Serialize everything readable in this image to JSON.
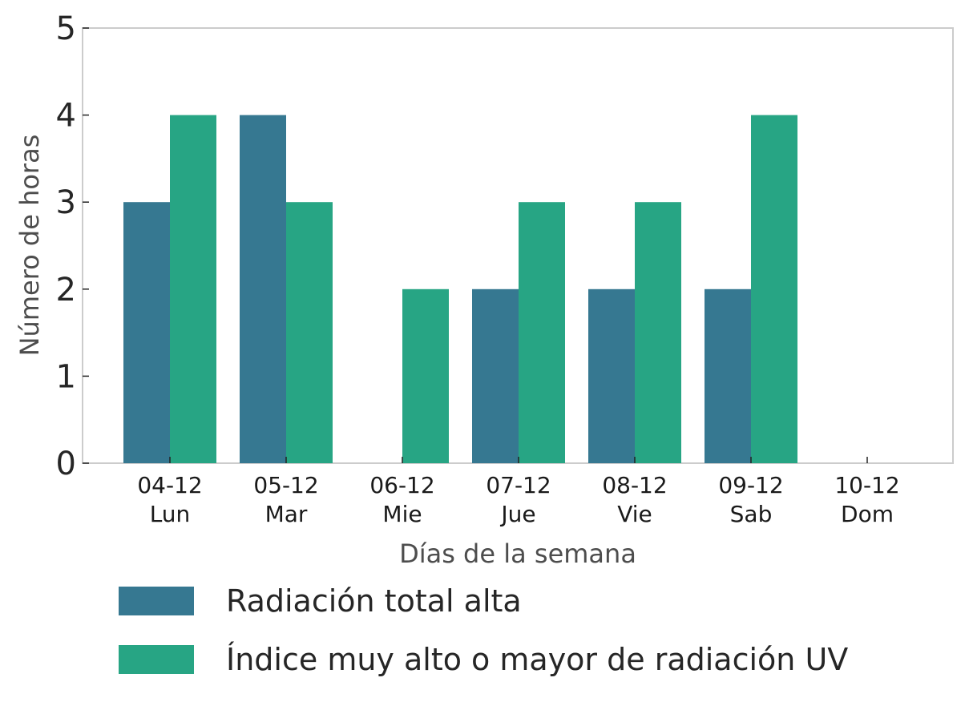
{
  "chart_data": {
    "type": "bar",
    "xlabel": "Días de la semana",
    "ylabel": "Número de horas",
    "ylim": [
      0,
      5
    ],
    "yticks": [
      0,
      1,
      2,
      3,
      4,
      5
    ],
    "categories": [
      {
        "date": "04-12",
        "day": "Lun"
      },
      {
        "date": "05-12",
        "day": "Mar"
      },
      {
        "date": "06-12",
        "day": "Mie"
      },
      {
        "date": "07-12",
        "day": "Jue"
      },
      {
        "date": "08-12",
        "day": "Vie"
      },
      {
        "date": "09-12",
        "day": "Sab"
      },
      {
        "date": "10-12",
        "day": "Dom"
      }
    ],
    "series": [
      {
        "name": "Radiación total alta",
        "color": "#367891",
        "values": [
          3,
          4,
          0,
          2,
          2,
          2,
          0
        ]
      },
      {
        "name": "Índice muy alto o mayor de radiación UV",
        "color": "#27a584",
        "values": [
          4,
          3,
          2,
          3,
          3,
          4,
          0
        ]
      }
    ],
    "grid": false,
    "legend_position": "bottom"
  }
}
